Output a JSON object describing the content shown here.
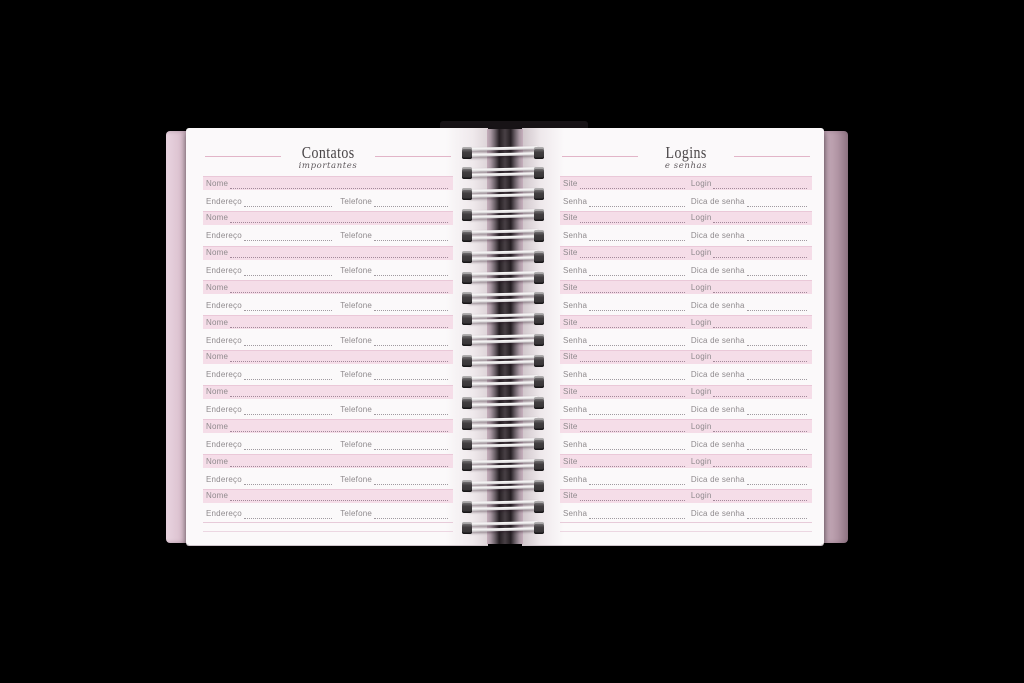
{
  "notebook": {
    "left_page": {
      "title": "Contatos",
      "subtitle": "importantes",
      "labels": {
        "name": "Nome",
        "address": "Endereço",
        "phone": "Telefone"
      },
      "row_count": 10
    },
    "right_page": {
      "title": "Logins",
      "subtitle": "e senhas",
      "labels": {
        "site": "Site",
        "login": "Login",
        "password": "Senha",
        "password_hint": "Dica de senha"
      },
      "row_count": 10
    },
    "colors": {
      "background": "#000000",
      "page_white": "#fbf9fa",
      "band_pink": "#f5dde8",
      "band_edge_pink": "#eac8d8",
      "accent_line_pink": "#e2b5c8",
      "label_gray": "#8f8a8d",
      "title_gray": "#494547",
      "cover_pink": "#dcc2d0",
      "spiral_white": "#f7f6f6"
    }
  }
}
